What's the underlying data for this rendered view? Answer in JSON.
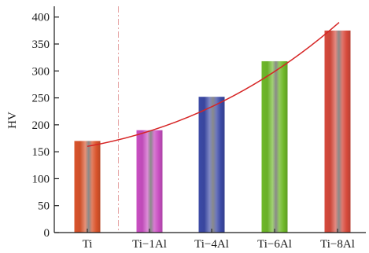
{
  "chart_data": {
    "type": "bar",
    "title": "",
    "xlabel": "",
    "ylabel": "HV",
    "ylim": [
      0,
      420
    ],
    "yticks": [
      0,
      50,
      100,
      150,
      200,
      250,
      300,
      350,
      400
    ],
    "categories": [
      "Ti",
      "Ti−1Al",
      "Ti−4Al",
      "Ti−6Al",
      "Ti−8Al"
    ],
    "values": [
      170,
      190,
      252,
      318,
      375
    ],
    "bar_colors": [
      "#d9542c",
      "#c94fc2",
      "#3c4aa6",
      "#6fb82a",
      "#d64a3c"
    ],
    "separator_after_category": "Ti",
    "separator_style": "dash-dot",
    "separator_color": "#e6a6a6",
    "trend_line": {
      "type": "curve",
      "color": "#d62424",
      "x_start": "Ti",
      "y_start": 160,
      "x_end": "Ti−8Al",
      "y_end": 390
    },
    "grid": false,
    "legend": "none"
  }
}
